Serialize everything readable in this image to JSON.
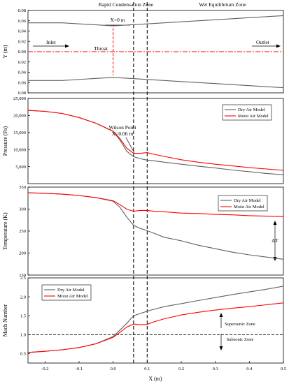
{
  "figure": {
    "zones": {
      "rapid": "Rapid Condensation Zone",
      "wet": "Wet Equilibrium Zone"
    },
    "x_axis_label": "X (m)",
    "x_ticks": [
      "-0.2",
      "-0.1",
      "0.0",
      "0.1",
      "0.2",
      "0.3",
      "0.4",
      "0.5"
    ],
    "colors": {
      "dry": "#606060",
      "moist": "#ff0000",
      "throat_line": "#ff0000",
      "dash": "#000000"
    }
  },
  "chart_data": [
    {
      "type": "line",
      "panel": "geometry",
      "ylabel": "Y (m)",
      "xlim": [
        -0.25,
        0.5
      ],
      "ylim": [
        -0.08,
        0.08
      ],
      "yticks": [
        "0.08",
        "0.06",
        "0.04",
        "0.02",
        "0.00",
        "0.02",
        "0.04",
        "0.06",
        "0.08"
      ],
      "ytick_values": [
        0.08,
        0.06,
        0.04,
        0.02,
        0.0,
        -0.02,
        -0.04,
        -0.06,
        -0.08
      ],
      "annotations": {
        "x0": "X=0 m",
        "inlet": "Inlet",
        "throat": "Throat",
        "outlet": "Outlet"
      },
      "series": [
        {
          "key": "upper_wall",
          "x": [
            -0.25,
            -0.15,
            -0.05,
            0.0,
            0.05,
            0.1,
            0.2,
            0.3,
            0.4,
            0.5
          ],
          "y": [
            0.056,
            0.056,
            0.052,
            0.05,
            0.052,
            0.054,
            0.058,
            0.062,
            0.066,
            0.07
          ]
        },
        {
          "key": "lower_wall",
          "x": [
            -0.25,
            -0.15,
            -0.05,
            0.0,
            0.05,
            0.1,
            0.2,
            0.3,
            0.4,
            0.5
          ],
          "y": [
            -0.056,
            -0.056,
            -0.052,
            -0.05,
            -0.052,
            -0.054,
            -0.058,
            -0.062,
            -0.066,
            -0.07
          ]
        }
      ]
    },
    {
      "type": "line",
      "panel": "pressure",
      "ylabel": "Pressure (Pa)",
      "xlim": [
        -0.25,
        0.5
      ],
      "ylim": [
        0,
        25000
      ],
      "yticks": [
        "25,000",
        "20,000",
        "15,000",
        "10,000",
        "5,000"
      ],
      "ytick_values": [
        25000,
        20000,
        15000,
        10000,
        5000
      ],
      "annotation": {
        "line1": "Wilson Point",
        "line2": "X=0.06 m"
      },
      "legend": [
        "Dry Air Model",
        "Moist Air Model"
      ],
      "series": [
        {
          "name": "Dry Air Model",
          "x": [
            -0.25,
            -0.2,
            -0.15,
            -0.1,
            -0.05,
            0.0,
            0.02,
            0.04,
            0.06,
            0.08,
            0.1,
            0.12,
            0.15,
            0.2,
            0.25,
            0.3,
            0.35,
            0.4,
            0.45,
            0.5
          ],
          "y": [
            21500,
            21200,
            20600,
            19400,
            17700,
            15300,
            12800,
            9500,
            7900,
            7300,
            6900,
            6700,
            6300,
            5700,
            5100,
            4600,
            4000,
            3500,
            3000,
            2600
          ]
        },
        {
          "name": "Moist Air Model",
          "x": [
            -0.25,
            -0.2,
            -0.15,
            -0.1,
            -0.05,
            0.0,
            0.02,
            0.04,
            0.06,
            0.08,
            0.1,
            0.12,
            0.15,
            0.2,
            0.25,
            0.3,
            0.35,
            0.4,
            0.45,
            0.5
          ],
          "y": [
            21500,
            21200,
            20600,
            19400,
            17700,
            15400,
            13200,
            10400,
            8900,
            8900,
            9100,
            8600,
            8000,
            7000,
            6300,
            5700,
            5200,
            4700,
            4300,
            3900
          ]
        }
      ]
    },
    {
      "type": "line",
      "panel": "temperature",
      "ylabel": "Temperature (K)",
      "xlim": [
        -0.25,
        0.5
      ],
      "ylim": [
        150,
        350
      ],
      "yticks": [
        "350",
        "300",
        "250",
        "200",
        "150"
      ],
      "ytick_values": [
        350,
        300,
        250,
        200,
        150
      ],
      "annotation": "ΔT",
      "legend": [
        "Dry Air Model",
        "Moist Air Model"
      ],
      "series": [
        {
          "name": "Dry Air Model",
          "x": [
            -0.25,
            -0.2,
            -0.15,
            -0.1,
            -0.05,
            0.0,
            0.02,
            0.04,
            0.06,
            0.08,
            0.1,
            0.12,
            0.15,
            0.2,
            0.25,
            0.3,
            0.35,
            0.4,
            0.45,
            0.5
          ],
          "y": [
            337,
            336,
            334,
            331,
            326,
            318,
            304,
            282,
            263,
            256,
            251,
            245,
            236,
            228,
            218,
            210,
            202,
            196,
            191,
            186
          ]
        },
        {
          "name": "Moist Air Model",
          "x": [
            -0.25,
            -0.2,
            -0.15,
            -0.1,
            -0.05,
            0.0,
            0.02,
            0.04,
            0.06,
            0.08,
            0.1,
            0.12,
            0.15,
            0.2,
            0.25,
            0.3,
            0.35,
            0.4,
            0.45,
            0.5
          ],
          "y": [
            337,
            336,
            334,
            331,
            326,
            319,
            310,
            300,
            295,
            297,
            297,
            295,
            294,
            291,
            290,
            288,
            287,
            285,
            284,
            283
          ]
        }
      ]
    },
    {
      "type": "line",
      "panel": "mach",
      "ylabel": "Mach Number",
      "xlim": [
        -0.25,
        0.5
      ],
      "ylim": [
        0.25,
        2.5
      ],
      "yticks": [
        "2.5",
        "2.0",
        "1.5",
        "1.0",
        "0.5"
      ],
      "ytick_values": [
        2.5,
        2.0,
        1.5,
        1.0,
        0.5
      ],
      "reference_line": 1.0,
      "annotations": {
        "supersonic": "Supersonic Zone",
        "subsonic": "Subsonic Zone"
      },
      "legend": [
        "Dry Air Model",
        "Moist Air Model"
      ],
      "series": [
        {
          "name": "Dry Air Model",
          "x": [
            -0.25,
            -0.2,
            -0.15,
            -0.1,
            -0.05,
            0.0,
            0.02,
            0.04,
            0.06,
            0.08,
            0.1,
            0.12,
            0.15,
            0.2,
            0.25,
            0.3,
            0.35,
            0.4,
            0.45,
            0.5
          ],
          "y": [
            0.53,
            0.56,
            0.6,
            0.66,
            0.76,
            0.95,
            1.12,
            1.3,
            1.5,
            1.56,
            1.62,
            1.67,
            1.74,
            1.82,
            1.9,
            1.98,
            2.06,
            2.13,
            2.2,
            2.28
          ]
        },
        {
          "name": "Moist Air Model",
          "x": [
            -0.25,
            -0.2,
            -0.15,
            -0.1,
            -0.05,
            0.0,
            0.02,
            0.04,
            0.06,
            0.08,
            0.1,
            0.12,
            0.15,
            0.2,
            0.25,
            0.3,
            0.35,
            0.4,
            0.45,
            0.5
          ],
          "y": [
            0.53,
            0.56,
            0.6,
            0.66,
            0.76,
            0.93,
            1.06,
            1.2,
            1.28,
            1.26,
            1.27,
            1.34,
            1.42,
            1.52,
            1.59,
            1.65,
            1.7,
            1.74,
            1.79,
            1.84
          ]
        }
      ]
    }
  ]
}
